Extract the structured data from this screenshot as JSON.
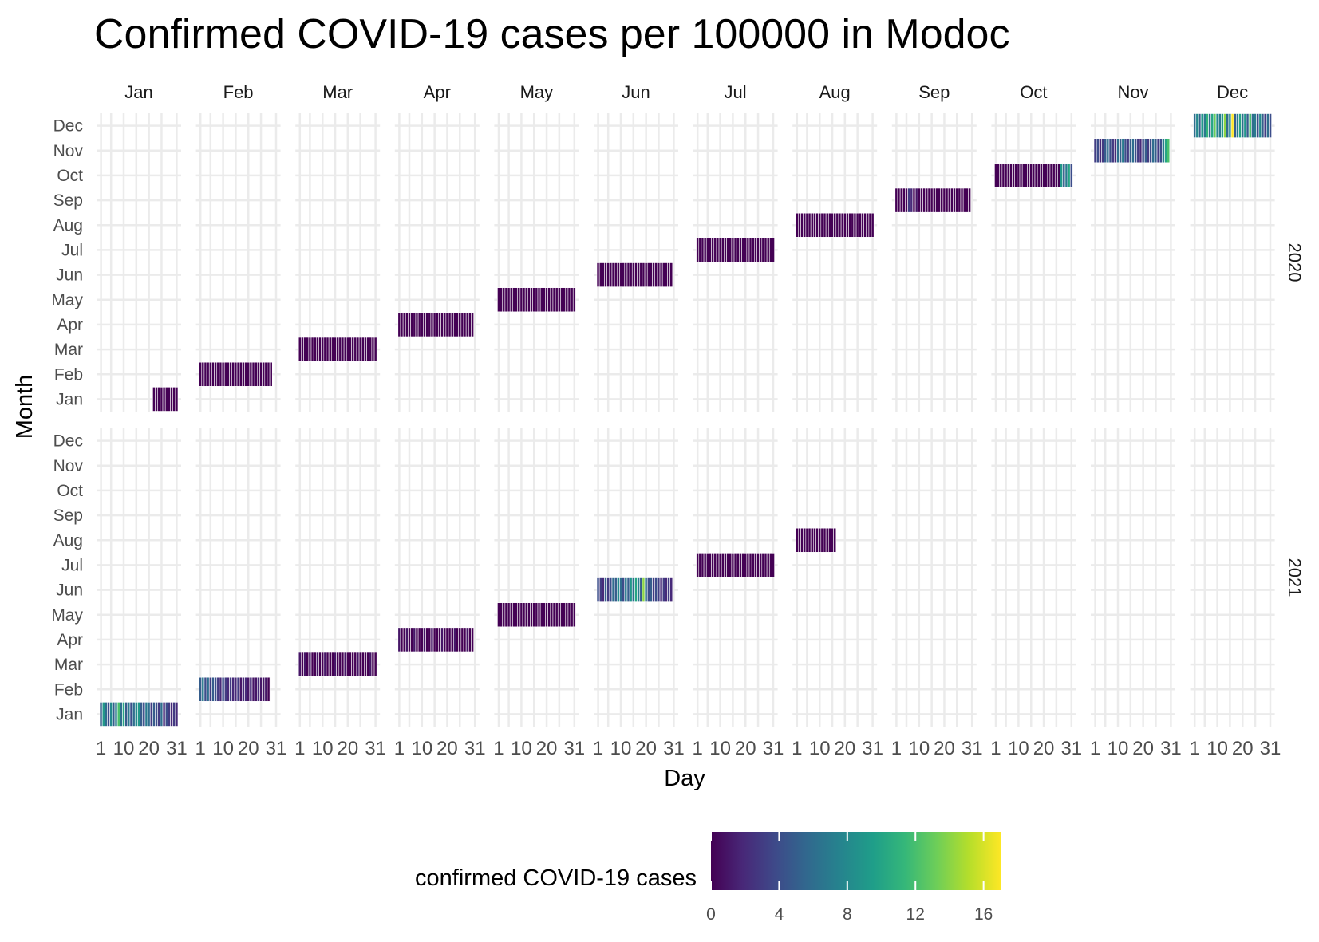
{
  "chart_data": {
    "type": "heatmap",
    "title": "Confirmed COVID-19 cases per 100000 in Modoc",
    "xlabel": "Day",
    "ylabel": "Month",
    "legend_title": "confirmed COVID-19 cases",
    "legend_position": "bottom",
    "color_scale": "viridis",
    "color_range": [
      0,
      17
    ],
    "legend_ticks": [
      "0",
      "4",
      "8",
      "12",
      "16"
    ],
    "facet_columns": [
      "Jan",
      "Feb",
      "Mar",
      "Apr",
      "May",
      "Jun",
      "Jul",
      "Aug",
      "Sep",
      "Oct",
      "Nov",
      "Dec"
    ],
    "facet_rows": [
      "2020",
      "2021"
    ],
    "y_categories": [
      "Jan",
      "Feb",
      "Mar",
      "Apr",
      "May",
      "Jun",
      "Jul",
      "Aug",
      "Sep",
      "Oct",
      "Nov",
      "Dec"
    ],
    "x_ticks": [
      "1",
      "10",
      "20",
      "31"
    ],
    "grid": true,
    "series": [
      {
        "year": "2020",
        "month": "Jan",
        "start_day": 22,
        "days": 10,
        "values": [
          0,
          0,
          0,
          0,
          0,
          0,
          0,
          0,
          0,
          0
        ]
      },
      {
        "year": "2020",
        "month": "Feb",
        "start_day": 1,
        "days": 29,
        "values": [
          0,
          0,
          0,
          0,
          0,
          0,
          0,
          0,
          0,
          0,
          0,
          0,
          0,
          0,
          0,
          0,
          0,
          0,
          0,
          0,
          0,
          0,
          0,
          0,
          0,
          0,
          0,
          0,
          0
        ]
      },
      {
        "year": "2020",
        "month": "Mar",
        "start_day": 1,
        "days": 31,
        "values": [
          0,
          0,
          0,
          0,
          0,
          0,
          0,
          0,
          0,
          0,
          0,
          0,
          0,
          0,
          0,
          0,
          0,
          0,
          0,
          0,
          0,
          0,
          0,
          0,
          0,
          0,
          0,
          0,
          0,
          0,
          0
        ]
      },
      {
        "year": "2020",
        "month": "Apr",
        "start_day": 1,
        "days": 30,
        "values": [
          0,
          0,
          0,
          0,
          0,
          0,
          0,
          0,
          0,
          0,
          0,
          0,
          0,
          0,
          0,
          0,
          0,
          0,
          0,
          0,
          0,
          0,
          0,
          0,
          0,
          0,
          0,
          0,
          0,
          0
        ]
      },
      {
        "year": "2020",
        "month": "May",
        "start_day": 1,
        "days": 31,
        "values": [
          0,
          0,
          0,
          0,
          0,
          0,
          0,
          0,
          0,
          0,
          0,
          0,
          0,
          0,
          0,
          0,
          0,
          0,
          0,
          0,
          0,
          0,
          0,
          0,
          0,
          0,
          0,
          0,
          0,
          0,
          0
        ]
      },
      {
        "year": "2020",
        "month": "Jun",
        "start_day": 1,
        "days": 30,
        "values": [
          0,
          0,
          0,
          0,
          0,
          0,
          0,
          0,
          0,
          0,
          0,
          0,
          0,
          0,
          0,
          0,
          0,
          0,
          0,
          0,
          0,
          0,
          0,
          0,
          0,
          0,
          0,
          0,
          0,
          0
        ]
      },
      {
        "year": "2020",
        "month": "Jul",
        "start_day": 1,
        "days": 31,
        "values": [
          0,
          0,
          0,
          0,
          0,
          0,
          0,
          0,
          0,
          0,
          0,
          0,
          0,
          0,
          0,
          0,
          0,
          0,
          0,
          0,
          0,
          0,
          0,
          0,
          0,
          0,
          0,
          0,
          0,
          0,
          0
        ]
      },
      {
        "year": "2020",
        "month": "Aug",
        "start_day": 1,
        "days": 31,
        "values": [
          0,
          0,
          0,
          0,
          0,
          0,
          0,
          0,
          0,
          0,
          0,
          0,
          0,
          0,
          0,
          0,
          0,
          0,
          0,
          0,
          0,
          0,
          0,
          0,
          0,
          0,
          0,
          0,
          0,
          0,
          0
        ]
      },
      {
        "year": "2020",
        "month": "Sep",
        "start_day": 1,
        "days": 30,
        "values": [
          0,
          0,
          0,
          0,
          0,
          3,
          2,
          0,
          1,
          0,
          0,
          0,
          0,
          0,
          0,
          0,
          0,
          0,
          0,
          0,
          0,
          0,
          0,
          0,
          0,
          0,
          0,
          0,
          0,
          0
        ]
      },
      {
        "year": "2020",
        "month": "Oct",
        "start_day": 1,
        "days": 31,
        "values": [
          0,
          0,
          0,
          0,
          0,
          0,
          0,
          0,
          0,
          0,
          0,
          0,
          0,
          0,
          0,
          0,
          0,
          0,
          0,
          0,
          0,
          0,
          0,
          0,
          0,
          0,
          9,
          5,
          7,
          10,
          4
        ]
      },
      {
        "year": "2020",
        "month": "Nov",
        "start_day": 1,
        "days": 30,
        "values": [
          3,
          4,
          2,
          3,
          5,
          6,
          4,
          3,
          2,
          6,
          5,
          7,
          4,
          3,
          5,
          6,
          4,
          3,
          2,
          4,
          5,
          3,
          4,
          6,
          5,
          3,
          4,
          7,
          10,
          12
        ]
      },
      {
        "year": "2020",
        "month": "Dec",
        "start_day": 1,
        "days": 31,
        "values": [
          6,
          8,
          5,
          9,
          7,
          11,
          6,
          10,
          13,
          8,
          7,
          9,
          14,
          6,
          8,
          17,
          5,
          7,
          10,
          6,
          9,
          5,
          12,
          6,
          7,
          4,
          8,
          5,
          3,
          6,
          4
        ]
      },
      {
        "year": "2021",
        "month": "Jan",
        "start_day": 1,
        "days": 31,
        "values": [
          5,
          9,
          6,
          4,
          8,
          5,
          7,
          12,
          6,
          10,
          5,
          7,
          4,
          6,
          8,
          9,
          5,
          4,
          7,
          6,
          3,
          5,
          4,
          3,
          6,
          2,
          4,
          3,
          2,
          3,
          2
        ]
      },
      {
        "year": "2021",
        "month": "Feb",
        "start_day": 1,
        "days": 28,
        "values": [
          5,
          7,
          4,
          6,
          3,
          5,
          4,
          3,
          2,
          4,
          3,
          2,
          3,
          2,
          2,
          3,
          1,
          2,
          2,
          1,
          2,
          1,
          1,
          2,
          1,
          1,
          1,
          0
        ]
      },
      {
        "year": "2021",
        "month": "Mar",
        "start_day": 1,
        "days": 31,
        "values": [
          1,
          0,
          1,
          0,
          1,
          0,
          0,
          1,
          0,
          0,
          1,
          0,
          0,
          0,
          1,
          0,
          0,
          0,
          1,
          0,
          0,
          0,
          0,
          1,
          0,
          0,
          0,
          0,
          1,
          0,
          0
        ]
      },
      {
        "year": "2021",
        "month": "Apr",
        "start_day": 1,
        "days": 30,
        "values": [
          1,
          0,
          0,
          1,
          0,
          0,
          1,
          0,
          0,
          0,
          1,
          0,
          0,
          1,
          0,
          0,
          0,
          1,
          0,
          0,
          0,
          0,
          1,
          0,
          0,
          0,
          0,
          1,
          0,
          0
        ]
      },
      {
        "year": "2021",
        "month": "May",
        "start_day": 1,
        "days": 31,
        "values": [
          0,
          0,
          0,
          0,
          0,
          0,
          0,
          0,
          0,
          0,
          0,
          0,
          0,
          0,
          0,
          0,
          0,
          0,
          0,
          0,
          0,
          0,
          0,
          0,
          0,
          0,
          0,
          0,
          0,
          0,
          0
        ]
      },
      {
        "year": "2021",
        "month": "Jun",
        "start_day": 1,
        "days": 30,
        "values": [
          4,
          3,
          2,
          5,
          3,
          4,
          6,
          5,
          8,
          6,
          4,
          7,
          5,
          9,
          6,
          10,
          7,
          5,
          14,
          6,
          4,
          5,
          3,
          4,
          3,
          2,
          3,
          2,
          3,
          2
        ]
      },
      {
        "year": "2021",
        "month": "Jul",
        "start_day": 1,
        "days": 31,
        "values": [
          0,
          0,
          0,
          0,
          0,
          0,
          0,
          0,
          0,
          0,
          0,
          0,
          0,
          0,
          0,
          0,
          0,
          0,
          0,
          0,
          0,
          0,
          0,
          0,
          0,
          0,
          0,
          0,
          0,
          0,
          0
        ]
      },
      {
        "year": "2021",
        "month": "Aug",
        "start_day": 1,
        "days": 16,
        "values": [
          0,
          0,
          0,
          0,
          0,
          0,
          0,
          0,
          0,
          0,
          0,
          0,
          0,
          0,
          0,
          0
        ]
      }
    ]
  }
}
